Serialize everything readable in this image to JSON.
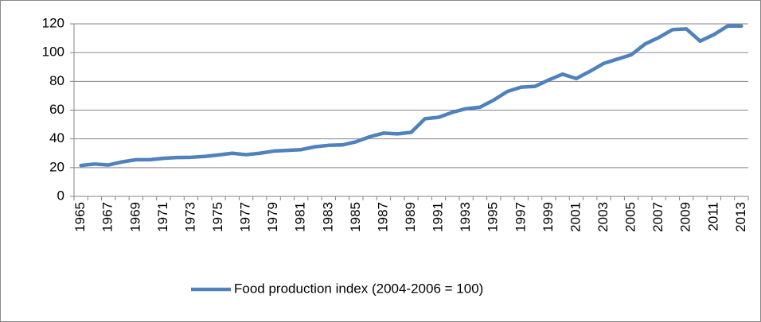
{
  "chart_data": {
    "type": "line",
    "categories": [
      "1965",
      null,
      "1967",
      null,
      "1969",
      null,
      "1971",
      null,
      "1973",
      null,
      "1975",
      null,
      "1977",
      null,
      "1979",
      null,
      "1981",
      null,
      "1983",
      null,
      "1985",
      null,
      "1987",
      null,
      "1989",
      null,
      "1991",
      null,
      "1993",
      null,
      "1995",
      null,
      "1997",
      null,
      "1999",
      null,
      "2001",
      null,
      "2003",
      null,
      "2005",
      null,
      "2007",
      null,
      "2009",
      null,
      "2011",
      null,
      "2013"
    ],
    "series": [
      {
        "name": "Food production index (2004-2006 = 100)",
        "color": "#4f81bd",
        "values": [
          21.5,
          22.5,
          21.8,
          24,
          25.5,
          25.5,
          26.5,
          27,
          27.2,
          27.8,
          28.8,
          30,
          29,
          30,
          31.5,
          32,
          32.5,
          34.5,
          35.5,
          35.8,
          38,
          41.5,
          44,
          43.5,
          44.5,
          54,
          55,
          58.5,
          61,
          62,
          67,
          73,
          76,
          76.5,
          81,
          85,
          82,
          87,
          92.5,
          95.5,
          98.5,
          106,
          110.5,
          116,
          116.5,
          108,
          112.5,
          118.5,
          118.5
        ]
      }
    ],
    "ylim": [
      0,
      120
    ],
    "yticks": [
      0,
      20,
      40,
      60,
      80,
      100,
      120
    ],
    "grid": true,
    "legend": "bottom"
  }
}
